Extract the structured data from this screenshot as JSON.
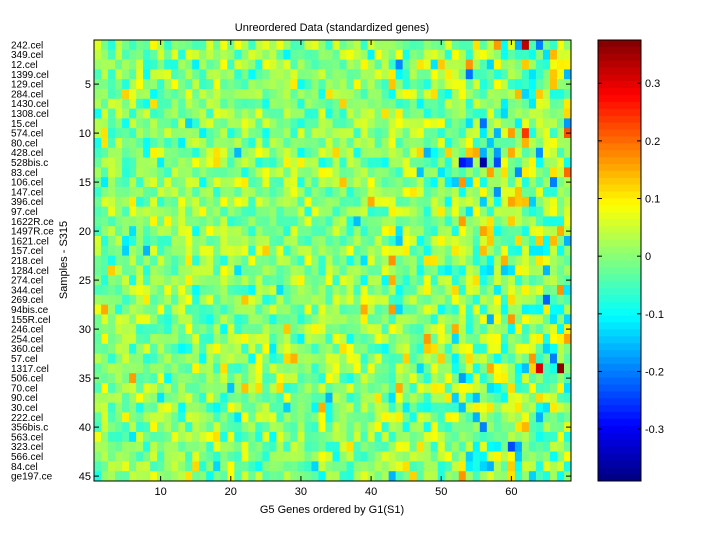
{
  "chart_data": {
    "type": "heatmap",
    "title": "Unreordered Data (standardized genes)",
    "xlabel": "G5 Genes ordered by G1(S1)",
    "ylabel": "Samples - S315",
    "n_cols": 68,
    "n_rows": 45,
    "x_ticks": [
      10,
      20,
      30,
      40,
      50,
      60
    ],
    "y_ticks": [
      5,
      10,
      15,
      20,
      25,
      30,
      35,
      40,
      45
    ],
    "row_labels": [
      "242.cel",
      "349.cel",
      "12.cel",
      "1399.cel",
      "129.cel",
      "284.cel",
      "1430.cel",
      "1308.cel",
      "15.cel",
      "574.cel",
      "80.cel",
      "428.cel",
      "528bis.c",
      "83.cel",
      "106.cel",
      "147.cel",
      "396.cel",
      "97.cel",
      "1622R.ce",
      "1497R.ce",
      "1621.cel",
      "157.cel",
      "218.cel",
      "1284.cel",
      "274.cel",
      "344.cel",
      "269.cel",
      "94bis.ce",
      "155R.cel",
      "246.cel",
      "254.cel",
      "360.cel",
      "57.cel",
      "1317.cel",
      "506.cel",
      "70.cel",
      "90.cel",
      "30.cel",
      "222.cel",
      "356bis.c",
      "563.cel",
      "323.cel",
      "566.cel",
      "84.cel",
      "ge197.ce"
    ],
    "colorbar": {
      "colormap": "jet",
      "range": [
        -0.39,
        0.375
      ],
      "ticks": [
        0.3,
        0.2,
        0.1,
        0,
        -0.1,
        -0.2,
        -0.3
      ],
      "tick_labels": [
        "0.3",
        "0.2",
        "0.1",
        "0",
        "-0.1",
        "-0.2",
        "-0.3"
      ]
    },
    "notable_cells": [
      {
        "row": 1,
        "col": 62,
        "value": 0.33
      },
      {
        "row": 4,
        "col": 54,
        "value": -0.21
      },
      {
        "row": 9,
        "col": 56,
        "value": -0.21
      },
      {
        "row": 10,
        "col": 62,
        "value": 0.24
      },
      {
        "row": 10,
        "col": 68,
        "value": 0.22
      },
      {
        "row": 13,
        "col": 53,
        "value": -0.28
      },
      {
        "row": 13,
        "col": 54,
        "value": -0.25
      },
      {
        "row": 13,
        "col": 56,
        "value": -0.36
      },
      {
        "row": 13,
        "col": 58,
        "value": -0.24
      },
      {
        "row": 14,
        "col": 68,
        "value": 0.2
      },
      {
        "row": 15,
        "col": 66,
        "value": -0.2
      },
      {
        "row": 21,
        "col": 68,
        "value": -0.16
      },
      {
        "row": 27,
        "col": 65,
        "value": -0.22
      },
      {
        "row": 30,
        "col": 52,
        "value": 0.15
      },
      {
        "row": 33,
        "col": 66,
        "value": -0.2
      },
      {
        "row": 34,
        "col": 64,
        "value": 0.31
      },
      {
        "row": 34,
        "col": 67,
        "value": 0.37
      },
      {
        "row": 34,
        "col": 62,
        "value": -0.15
      },
      {
        "row": 36,
        "col": 44,
        "value": 0.15
      },
      {
        "row": 42,
        "col": 60,
        "value": -0.24
      }
    ]
  }
}
